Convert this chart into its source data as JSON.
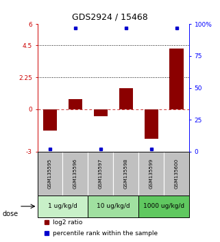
{
  "title": "GDS2924 / 15468",
  "samples": [
    "GSM135595",
    "GSM135596",
    "GSM135597",
    "GSM135598",
    "GSM135599",
    "GSM135600"
  ],
  "log2_ratio": [
    -1.5,
    0.7,
    -0.5,
    1.5,
    -2.1,
    4.3
  ],
  "percentile_rank": [
    2,
    97,
    2,
    97,
    2,
    97
  ],
  "ylim_left": [
    -3,
    6
  ],
  "ylim_right": [
    0,
    100
  ],
  "left_yticks": [
    -3,
    0,
    2.25,
    4.5,
    6
  ],
  "left_ytick_labels": [
    "-3",
    "0",
    "2.25",
    "4.5",
    "6"
  ],
  "right_yticks": [
    0,
    25,
    50,
    75,
    100
  ],
  "right_ytick_labels": [
    "0",
    "25",
    "50",
    "75",
    "100%"
  ],
  "hlines_dotted": [
    4.5,
    2.25
  ],
  "hline_dashed": 0,
  "dose_groups": [
    {
      "label": "1 ug/kg/d",
      "samples": [
        0,
        1
      ],
      "color": "#c8f0c8"
    },
    {
      "label": "10 ug/kg/d",
      "samples": [
        2,
        3
      ],
      "color": "#a0e0a0"
    },
    {
      "label": "1000 ug/kg/d",
      "samples": [
        4,
        5
      ],
      "color": "#60c860"
    }
  ],
  "bar_color": "#8b0000",
  "dot_color": "#0000cd",
  "sample_box_color": "#c0c0c0",
  "legend_red_label": "log2 ratio",
  "legend_blue_label": "percentile rank within the sample",
  "dose_label": "dose"
}
